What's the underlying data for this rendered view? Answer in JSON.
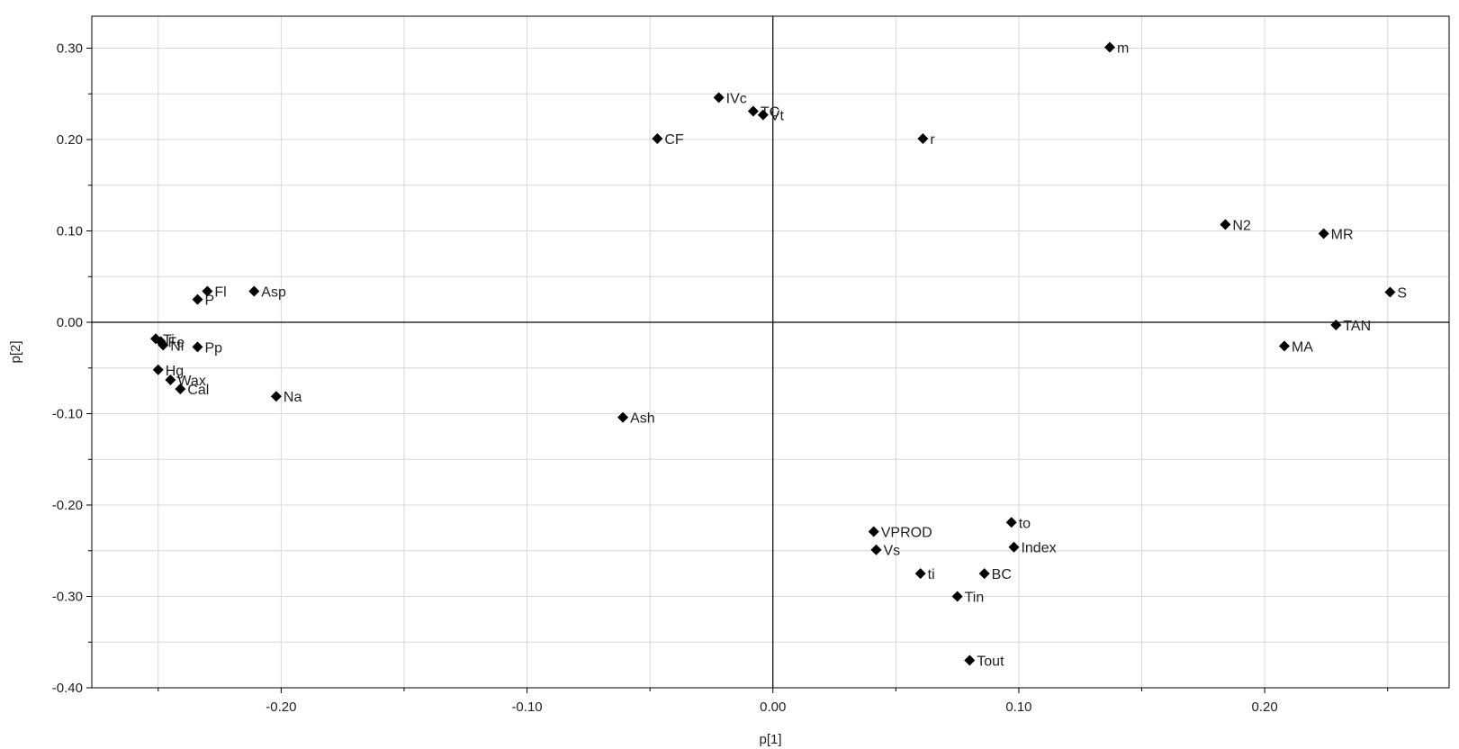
{
  "chart_data": {
    "type": "scatter",
    "title": "",
    "xlabel": "p[1]",
    "ylabel": "p[2]",
    "xlim": [
      -0.277,
      0.275
    ],
    "ylim": [
      -0.4,
      0.335
    ],
    "grid": true,
    "legend": "none",
    "marker": "diamond",
    "colors": {
      "marker": "#000000",
      "grid": "#d8d8d8",
      "axis": "#000000",
      "frame": "#000000"
    },
    "xticks": [
      {
        "value": -0.2,
        "label": "-0.20"
      },
      {
        "value": -0.1,
        "label": "-0.10"
      },
      {
        "value": 0.0,
        "label": "0.00"
      },
      {
        "value": 0.1,
        "label": "0.10"
      },
      {
        "value": 0.2,
        "label": "0.20"
      }
    ],
    "xticks_minor": [
      -0.25,
      -0.15,
      -0.05,
      0.05,
      0.15,
      0.25
    ],
    "yticks": [
      {
        "value": 0.3,
        "label": "0.30"
      },
      {
        "value": 0.2,
        "label": "0.20"
      },
      {
        "value": 0.1,
        "label": "0.10"
      },
      {
        "value": 0.0,
        "label": "0.00"
      },
      {
        "value": -0.1,
        "label": "-0.10"
      },
      {
        "value": -0.2,
        "label": "-0.20"
      },
      {
        "value": -0.3,
        "label": "-0.30"
      },
      {
        "value": -0.4,
        "label": "-0.40"
      }
    ],
    "yticks_minor": [
      0.25,
      0.15,
      0.05,
      -0.05,
      -0.15,
      -0.25,
      -0.35
    ],
    "points": [
      {
        "label": "m",
        "x": 0.137,
        "y": 0.301
      },
      {
        "label": "IVc",
        "x": -0.022,
        "y": 0.246
      },
      {
        "label": "TC",
        "x": -0.008,
        "y": 0.231
      },
      {
        "label": "Vt",
        "x": -0.004,
        "y": 0.227
      },
      {
        "label": "CF",
        "x": -0.047,
        "y": 0.201
      },
      {
        "label": "r",
        "x": 0.061,
        "y": 0.201
      },
      {
        "label": "N2",
        "x": 0.184,
        "y": 0.107
      },
      {
        "label": "MR",
        "x": 0.224,
        "y": 0.097
      },
      {
        "label": "S",
        "x": 0.251,
        "y": 0.033
      },
      {
        "label": "TAN",
        "x": 0.229,
        "y": -0.003
      },
      {
        "label": "MA",
        "x": 0.208,
        "y": -0.026
      },
      {
        "label": "Fl",
        "x": -0.23,
        "y": 0.034
      },
      {
        "label": "P",
        "x": -0.234,
        "y": 0.025
      },
      {
        "label": "Asp",
        "x": -0.211,
        "y": 0.034
      },
      {
        "label": "Ti",
        "x": -0.251,
        "y": -0.018
      },
      {
        "label": "Fe",
        "x": -0.249,
        "y": -0.021
      },
      {
        "label": "Ni",
        "x": -0.248,
        "y": -0.025
      },
      {
        "label": "Pp",
        "x": -0.234,
        "y": -0.027
      },
      {
        "label": "Hg",
        "x": -0.25,
        "y": -0.052
      },
      {
        "label": "Wax",
        "x": -0.245,
        "y": -0.063
      },
      {
        "label": "Cal",
        "x": -0.241,
        "y": -0.073
      },
      {
        "label": "Na",
        "x": -0.202,
        "y": -0.081
      },
      {
        "label": "Ash",
        "x": -0.061,
        "y": -0.104
      },
      {
        "label": "VPROD",
        "x": 0.041,
        "y": -0.229
      },
      {
        "label": "Vs",
        "x": 0.042,
        "y": -0.249
      },
      {
        "label": "to",
        "x": 0.097,
        "y": -0.219
      },
      {
        "label": "Index",
        "x": 0.098,
        "y": -0.246
      },
      {
        "label": "ti",
        "x": 0.06,
        "y": -0.275
      },
      {
        "label": "BC",
        "x": 0.086,
        "y": -0.275
      },
      {
        "label": "Tin",
        "x": 0.075,
        "y": -0.3
      },
      {
        "label": "Tout",
        "x": 0.08,
        "y": -0.37
      }
    ]
  }
}
